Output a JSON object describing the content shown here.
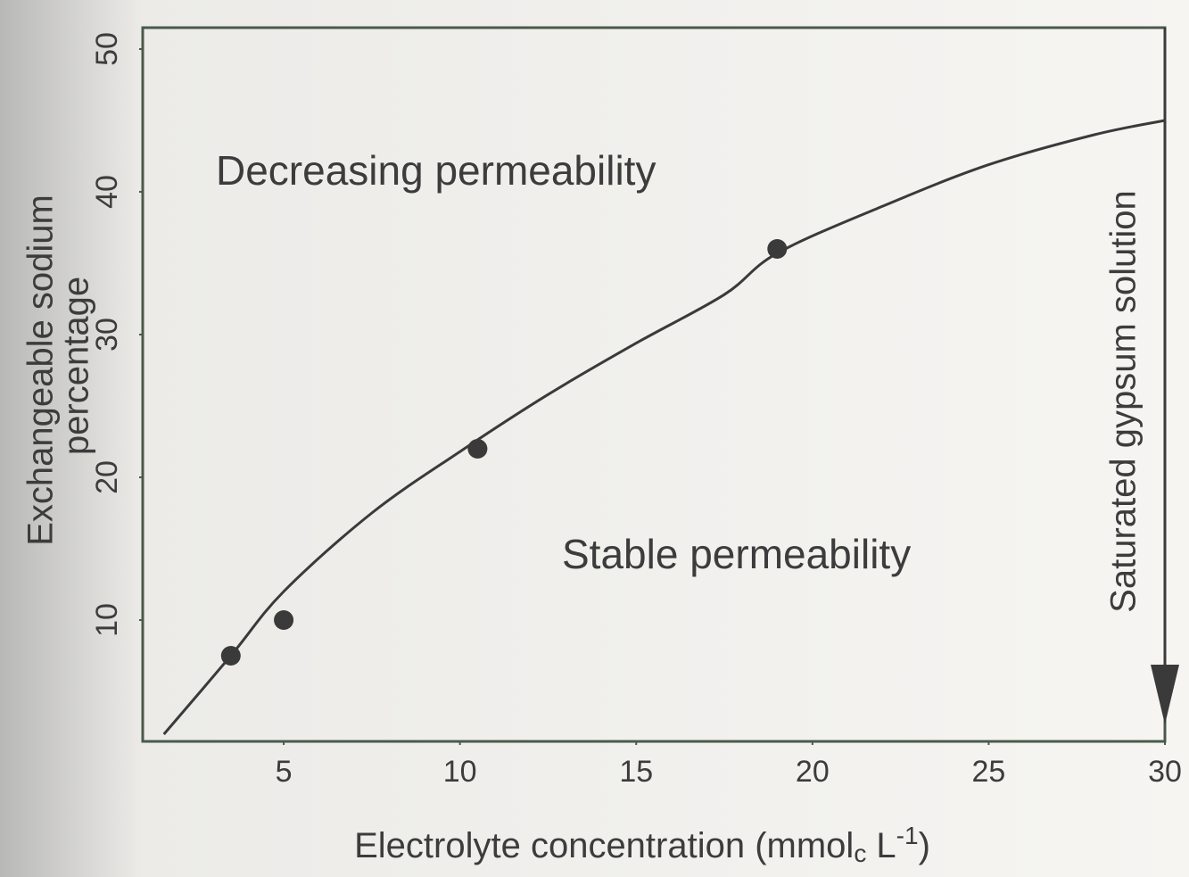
{
  "chart_data": {
    "type": "scatter",
    "ylabel": [
      "Exchangeable sodium",
      "percentage"
    ],
    "xlabel": [
      "Electrolyte concentration (mmol",
      "c",
      " L",
      "-1",
      ")"
    ],
    "annotations": [
      "Decreasing permeability",
      "Stable permeability",
      "Saturated gypsum solution"
    ],
    "xlim": [
      1,
      30
    ],
    "xticks": [
      5,
      10,
      15,
      20,
      25,
      30
    ],
    "ylim": [
      1.5,
      51.5
    ],
    "yticks": [
      10,
      20,
      30,
      40,
      50
    ],
    "series": [
      {
        "kind": "points",
        "color": "#3a3a3a",
        "x": [
          3.5,
          5,
          10.5,
          19
        ],
        "values": [
          7.5,
          10,
          22,
          36
        ]
      },
      {
        "kind": "curve",
        "color": "#3a3a3a",
        "x": [
          1.6,
          3.5,
          5,
          7.5,
          10,
          12.5,
          15,
          17.5,
          19,
          22,
          25,
          28,
          30
        ],
        "values": [
          2,
          7.5,
          12,
          17.5,
          21.8,
          25.8,
          29.4,
          32.8,
          35.7,
          39,
          41.9,
          44,
          45
        ]
      }
    ]
  }
}
